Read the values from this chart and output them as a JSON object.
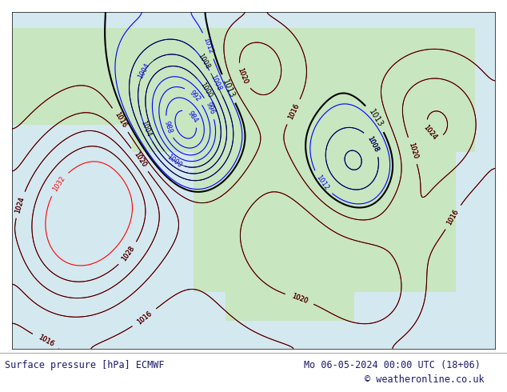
{
  "title_left": "Surface pressure [hPa] ECMWF",
  "title_right": "Mo 06-05-2024 00:00 UTC (18+06)",
  "copyright": "© weatheronline.co.uk",
  "bg_color": "#ffffff",
  "map_bg_color": "#d4e8f0",
  "land_color": "#c8e6c0",
  "fig_width": 6.34,
  "fig_height": 4.9,
  "dpi": 100,
  "bottom_text_color": "#1a1a6e",
  "bottom_bg_color": "#ffffff",
  "copyright_color": "#1a1a6e"
}
